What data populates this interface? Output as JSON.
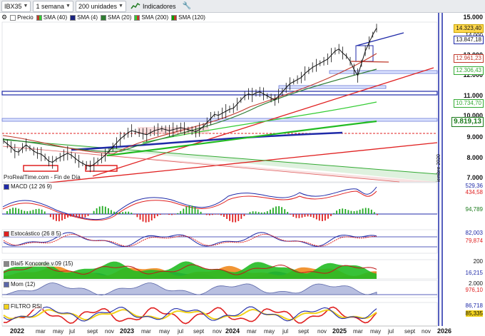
{
  "toolbar": {
    "symbol": "IBX35",
    "period": "1 semana",
    "units": "200 unidades",
    "indicators_button": "Indicadores"
  },
  "overlays": [
    {
      "label": "Precio",
      "color": "#222222"
    },
    {
      "label": "SMA (40)",
      "color": "#c0392b"
    },
    {
      "label": "SMA (4)",
      "color": "#1a237e"
    },
    {
      "label": "SMA (20)",
      "color": "#2e7d32"
    },
    {
      "label": "SMA (200)",
      "color": "#33cc33"
    },
    {
      "label": "SMA (120)",
      "color": "#00a000"
    }
  ],
  "price_axis": {
    "ticks": [
      "15.000",
      "14.000",
      "13.000",
      "12.000",
      "11.000",
      "10.000",
      "9.000",
      "8.000",
      "7.000"
    ],
    "tags": [
      {
        "text": "14.323,40",
        "color": "#111111",
        "bg": "#ffd84d"
      },
      {
        "text": "13.847,18",
        "color": "#111111",
        "bg": "#ffffff"
      },
      {
        "text": "12.961,23",
        "color": "#c0392b",
        "bg": "#ffffff"
      },
      {
        "text": "12.306,43",
        "color": "#33aa33",
        "bg": "#ffffff"
      },
      {
        "text": "10.734,70",
        "color": "#33aa33",
        "bg": "#ffffff"
      },
      {
        "text": "9.819,13",
        "color": "#1a7a1a",
        "bg": "#ffffff"
      }
    ]
  },
  "credit": "ProRealTime.com - Fin de Día",
  "vertical_note": "iembre 2020",
  "panes": {
    "macd": {
      "label": "MACD (12 26 9)",
      "tags": [
        "529,36",
        "434,58",
        "94,789"
      ]
    },
    "stoch": {
      "label": "Estocástico (26 8 5)",
      "tags": [
        "82,003",
        "79,874"
      ]
    },
    "blai5": {
      "label": "Blai5 Koncorde v.09 (15)",
      "tags": [
        "200",
        "16,215"
      ]
    },
    "mom": {
      "label": "Mom (12)",
      "tags": [
        "2.000",
        "976,10"
      ]
    },
    "rsi": {
      "label": "FILTRO RSI",
      "tags": [
        "86,718",
        "85,335"
      ]
    }
  },
  "time_axis": {
    "years": [
      "2022",
      "2023",
      "2024",
      "2025",
      "2026"
    ],
    "months": [
      "mar",
      "may",
      "jul",
      "sept",
      "nov",
      "mar",
      "may",
      "jul",
      "sept",
      "nov",
      "mar",
      "may",
      "jul",
      "sept",
      "nov",
      "mar",
      "may",
      "jul",
      "sept",
      "nov"
    ]
  },
  "chart_data": {
    "type": "line",
    "title": "IBX35",
    "x_unit": "week",
    "price_close": [
      8800,
      8650,
      8500,
      8300,
      8250,
      8450,
      8600,
      8450,
      8300,
      8200,
      8150,
      8000,
      7800,
      7750,
      7900,
      8000,
      8100,
      8200,
      8100,
      7950,
      7800,
      7700,
      7600,
      7550,
      7650,
      7800,
      7950,
      8100,
      8300,
      8500,
      8700,
      8900,
      9050,
      9200,
      9300,
      9250,
      9200,
      9150,
      9100,
      9200,
      9300,
      9350,
      9400,
      9350,
      9300,
      9350,
      9400,
      9450,
      9400,
      9350,
      9300,
      9250,
      9350,
      9500,
      9700,
      9900,
      10100,
      10050,
      10150,
      10250,
      10350,
      10400,
      10600,
      10800,
      11000,
      11100,
      11050,
      11150,
      11200,
      11100,
      11000,
      10900,
      10800,
      11000,
      11200,
      11400,
      11600,
      11700,
      11800,
      11900,
      12100,
      12250,
      12400,
      12500,
      12600,
      12700,
      12800,
      13000,
      13200,
      13300,
      13100,
      12950,
      12700,
      12300,
      12000,
      12600,
      13200,
      13600,
      14000,
      14323
    ],
    "y_axis": [
      7000,
      15000
    ]
  },
  "colors": {
    "accent_blue": "#1f2aa8",
    "resistance_red": "#e02020",
    "support_green": "#22bb22"
  }
}
